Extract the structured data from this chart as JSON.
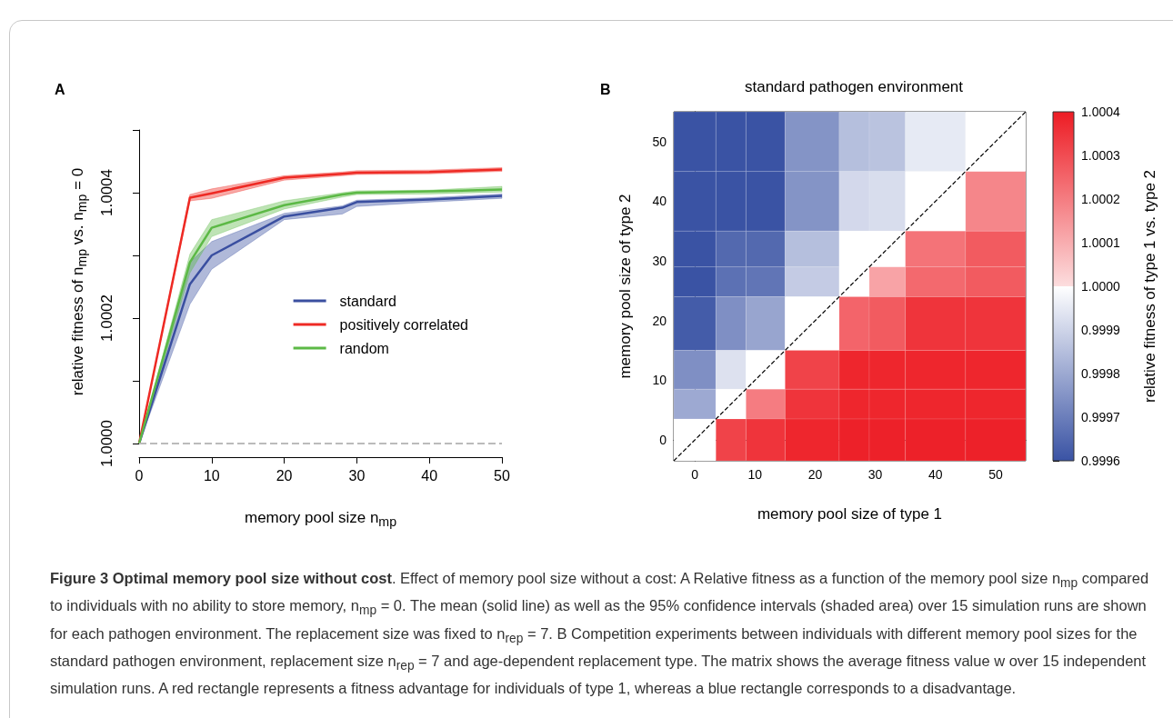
{
  "chart_data": [
    {
      "type": "line",
      "title": "A",
      "xlabel": "memory pool size n$_{mp}$",
      "ylabel": "relative fitness of n$_{mp}$ vs. n$_{mp}$ = 0",
      "x": [
        0,
        7,
        10,
        20,
        28,
        30,
        40,
        50
      ],
      "xlim": [
        0,
        50
      ],
      "xticks": [
        0,
        10,
        20,
        30,
        40,
        50
      ],
      "ylim": [
        1.0,
        1.0005
      ],
      "yticks": [
        {
          "value": 1.0,
          "label": "1.0000"
        },
        {
          "value": 1.0001,
          "label": null
        },
        {
          "value": 1.0002,
          "label": "1.0002"
        },
        {
          "value": 1.0003,
          "label": null
        },
        {
          "value": 1.0004,
          "label": "1.0004"
        },
        {
          "value": 1.0005,
          "label": null
        }
      ],
      "legend": "right",
      "series": [
        {
          "name": "standard",
          "color": "#3a4fa0",
          "values": [
            1.0,
            1.000254,
            1.0003,
            1.000362,
            1.000376,
            1.000385,
            1.000389,
            1.000395
          ],
          "lower": [
            1.0,
            1.000222,
            1.000278,
            1.000357,
            1.000366,
            1.000378,
            1.000385,
            1.000391
          ],
          "upper": [
            1.0,
            1.000289,
            1.000322,
            1.000367,
            1.000379,
            1.000388,
            1.000392,
            1.000398
          ]
        },
        {
          "name": "positively correlated",
          "color": "#ee2a24",
          "values": [
            1.0,
            1.000392,
            1.000399,
            1.000424,
            1.00043,
            1.000432,
            1.000433,
            1.000437
          ],
          "lower": [
            1.0,
            1.000387,
            1.000391,
            1.00042,
            1.000427,
            1.000429,
            1.00043,
            1.000434
          ],
          "upper": [
            1.0,
            1.000397,
            1.000406,
            1.000427,
            1.000433,
            1.000435,
            1.000436,
            1.00044
          ]
        },
        {
          "name": "random",
          "color": "#5cb946",
          "values": [
            1.0,
            1.000289,
            1.000344,
            1.00038,
            1.000397,
            1.0004,
            1.000402,
            1.000405
          ],
          "lower": [
            1.0,
            1.000272,
            1.00033,
            1.000374,
            1.000393,
            1.000397,
            1.000398,
            1.000401
          ],
          "upper": [
            1.0,
            1.000302,
            1.000357,
            1.000387,
            1.0004,
            1.000403,
            1.000404,
            1.00041
          ]
        }
      ],
      "ref_lines": [
        {
          "axis": "y",
          "value": 1.0,
          "color": "#bbbbbb",
          "line_style": "dashed"
        }
      ],
      "annotations": [
        "Figure 3 Optimal memory pool size without cost",
        ". Effect of memory pool size without a cost: A Relative fitness as a function of the memory pool size n$_{mp}$ compared to individuals with no ability to store memory, n$_{mp}$ = 0. The mean (solid line) as well as the 95% confidence intervals (shaded area) over 15 simulation runs are shown for each pathogen environment. The replacement size was fixed to n$_{rep}$ = 7. B Competition experiments between individuals with different memory pool sizes for the standard pathogen environment, replacement size n$_{rep}$ = 7 and age-dependent replacement type. The matrix shows the average fitness value w over 15 independent simulation runs. A red rectangle represents a fitness advantage for individuals of type 1, whereas a blue rectangle corresponds to a disadvantage."
      ]
    },
    {
      "type": "heatmap",
      "title": "B",
      "subtitle": "standard pathogen environment",
      "xlabel": "memory pool size of type 1",
      "ylabel": "memory pool size of type 2",
      "clabel": "relative fitness of type 1 vs. type 2",
      "x": [
        0,
        7,
        10,
        20,
        28,
        30,
        40,
        50
      ],
      "y": [
        50,
        40,
        30,
        28,
        20,
        10,
        7,
        0
      ],
      "xlim": [
        -3.5,
        55
      ],
      "xticks": [
        0,
        10,
        20,
        30,
        40,
        50
      ],
      "ylim": [
        -3.5,
        55
      ],
      "yticks": [
        0,
        10,
        20,
        30,
        40,
        50
      ],
      "cells": [
        [
          0.9996,
          0.9996,
          0.9996,
          0.99975,
          0.99985,
          0.99986,
          0.99995,
          1.0
        ],
        [
          0.9996,
          0.9996,
          0.9996,
          0.99975,
          0.99991,
          0.99992,
          1.0,
          1.00018
        ],
        [
          0.9996,
          0.99965,
          0.99965,
          0.99985,
          1.0,
          1.0,
          1.00022,
          1.00027
        ],
        [
          0.9996,
          0.99967,
          0.99968,
          0.99988,
          1.0,
          1.00012,
          1.00024,
          1.00027
        ],
        [
          0.99962,
          0.99974,
          0.99979,
          1.0,
          1.00025,
          1.00027,
          1.00035,
          1.00035
        ],
        [
          0.99974,
          0.99993,
          1.0,
          1.00032,
          1.00038,
          1.00038,
          1.00038,
          1.00038
        ],
        [
          0.9998,
          1.0,
          1.0002,
          1.00035,
          1.00038,
          1.00038,
          1.00038,
          1.00038
        ],
        [
          1.0,
          1.00032,
          1.00035,
          1.00038,
          1.00039,
          1.00039,
          1.00039,
          1.00039
        ]
      ],
      "clim": [
        0.9996,
        1.0004
      ],
      "cticks": [
        {
          "value": 0.9996,
          "label": "0.9996"
        },
        {
          "value": 0.9997,
          "label": "0.9997"
        },
        {
          "value": 0.9998,
          "label": "0.9998"
        },
        {
          "value": 0.9999,
          "label": "0.9999"
        },
        {
          "value": 1.0,
          "label": "1.0000"
        },
        {
          "value": 1.0001,
          "label": "1.0001"
        },
        {
          "value": 1.0002,
          "label": "1.0002"
        },
        {
          "value": 1.0003,
          "label": "1.0003"
        },
        {
          "value": 1.0004,
          "label": "1.0004"
        }
      ],
      "series": [
        {
          "type": "line",
          "x": [
            -3.5,
            55
          ],
          "values": [
            -3.5,
            55
          ],
          "color": "#000000",
          "line_style": "dashed"
        }
      ]
    }
  ]
}
